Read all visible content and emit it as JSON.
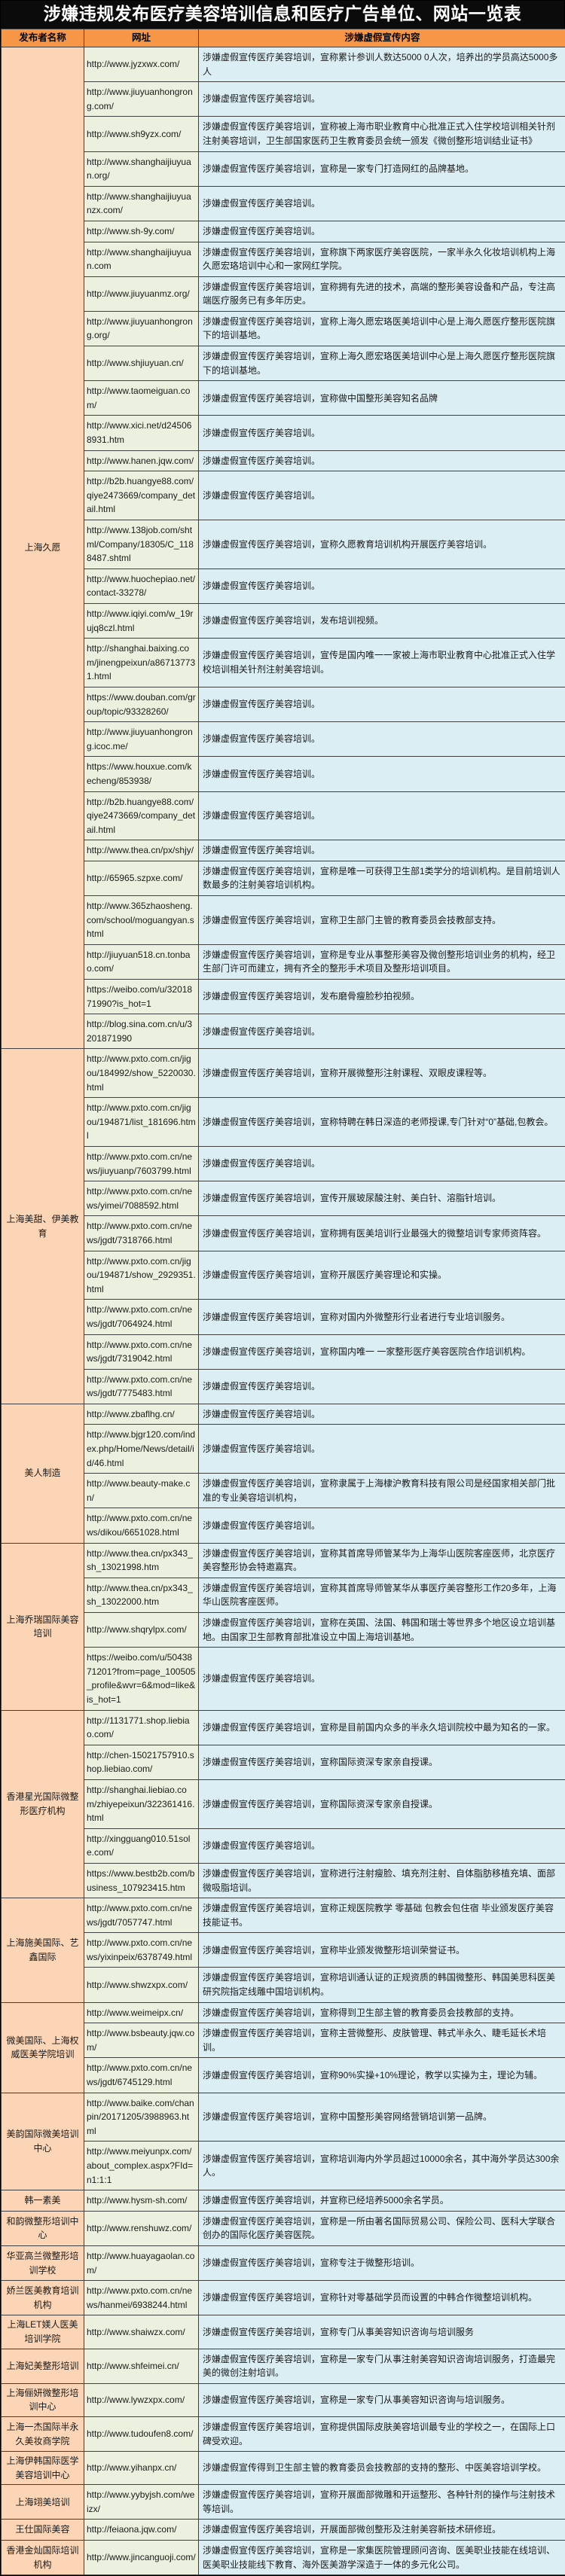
{
  "title": "涉嫌违规发布医疗美容培训信息和医疗广告单位、网站一览表",
  "columns": [
    "发布者名称",
    "网址",
    "涉嫌虚假宣传内容"
  ],
  "colors": {
    "title_bg": "#0b0b0b",
    "title_text": "#ffffff",
    "header_bg": "#f79646",
    "name_col_bg": "#fbd5b5",
    "url_col_bg": "#ebf1de",
    "content_col_bg": "#daeef3",
    "border": "#404040"
  },
  "groups": [
    {
      "publisher": "上海久愿",
      "rows": [
        {
          "url": "http://www.jyzxwx.com/",
          "content": "涉嫌虚假宣传医疗美容培训，宣称累计参训人数达5000 0人次，培养出的学员高达5000多人"
        },
        {
          "url": "http://www.jiuyuanhongrong.com/",
          "content": "涉嫌虚假宣传医疗美容培训。"
        },
        {
          "url": "http://www.sh9yzx.com/",
          "content": "涉嫌虚假宣传医疗美容培训，宣称被上海市职业教育中心批准正式入住学校培训相关针剂注射美容培训，卫生部国家医药卫生教育委员会统一颁发《微创整形培训结业证书》"
        },
        {
          "url": "http://www.shanghaijiuyuan.org/",
          "content": "涉嫌虚假宣传医疗美容培训，宣称是一家专门打造网红的品牌基地。"
        },
        {
          "url": "http://www.shanghaijiuyuanzx.com/",
          "content": "涉嫌虚假宣传医疗美容培训。"
        },
        {
          "url": "http://www.sh-9y.com/",
          "content": "涉嫌虚假宣传医疗美容培训。"
        },
        {
          "url": "http://www.shanghaijiuyuan.com",
          "content": "涉嫌虚假宣传医疗美容培训，宣称旗下两家医疗美容医院，一家半永久化妆培训机构上海久愿宏珞培训中心和一家网红学院。"
        },
        {
          "url": "http://www.jiuyuanmz.org/",
          "content": "涉嫌虚假宣传医疗美容培训，宣称拥有先进的技术，高端的整形美容设备和产品，专注高端医疗服务已有多年历史。"
        },
        {
          "url": "http://www.jiuyuanhongrong.org/",
          "content": "涉嫌虚假宣传医疗美容培训，宣称上海久愿宏珞医美培训中心是上海久愿医疗整形医院旗下的培训基地。"
        },
        {
          "url": "http://www.shjiuyuan.cn/",
          "content": "涉嫌虚假宣传医疗美容培训，宣称上海久愿宏珞医美培训中心是上海久愿医疗整形医院旗下的培训基地。"
        },
        {
          "url": "http://www.taomeiguan.com/",
          "content": "涉嫌虚假宣传医疗美容培训，宣称做中国整形美容知名品牌"
        },
        {
          "url": "http://www.xici.net/d245068931.htm",
          "content": "涉嫌虚假宣传医疗美容培训。"
        },
        {
          "url": "http://www.hanen.jqw.com/",
          "content": "涉嫌虚假宣传医疗美容培训。"
        },
        {
          "url": "http://b2b.huangye88.com/qiye2473669/company_detail.html",
          "content": "涉嫌虚假宣传医疗美容培训。"
        },
        {
          "url": "http://www.138job.com/shtml/Company/18305/C_1188487.shtml",
          "content": "涉嫌虚假宣传医疗美容培训，宣称久愿教育培训机构开展医疗美容培训。"
        },
        {
          "url": "http://www.huochepiao.net/contact-33278/",
          "content": "涉嫌虚假宣传医疗美容培训。"
        },
        {
          "url": "http://www.iqiyi.com/w_19rujq8czl.html",
          "content": "涉嫌虚假宣传医疗美容培训，发布培训视频。"
        },
        {
          "url": "http://shanghai.baixing.com/jinengpeixun/a867137731.html",
          "content": "涉嫌虚假宣传医疗美容培训，宣传是国内唯一一家被上海市职业教育中心批准正式入住学校培训相关针剂注射美容培训。"
        },
        {
          "url": "https://www.douban.com/group/topic/93328260/",
          "content": "涉嫌虚假宣传医疗美容培训。"
        },
        {
          "url": "http://www.jiuyuanhongrong.icoc.me/",
          "content": "涉嫌虚假宣传医疗美容培训。"
        },
        {
          "url": "https://www.houxue.com/kecheng/853938/",
          "content": "涉嫌虚假宣传医疗美容培训。"
        },
        {
          "url": "http://b2b.huangye88.com/qiye2473669/company_detail.html",
          "content": "涉嫌虚假宣传医疗美容培训。"
        },
        {
          "url": "http://www.thea.cn/px/shjy/",
          "content": "涉嫌虚假宣传医疗美容培训。"
        },
        {
          "url": "http://65965.szpxe.com/",
          "content": "涉嫌虚假宣传医疗美容培训，宣称是唯一可获得卫生部1类学分的培训机构。是目前培训人数最多的注射美容培训机构。"
        },
        {
          "url": "http://www.365zhaosheng.com/school/moguangyan.shtml",
          "content": "涉嫌虚假宣传医疗美容培训，宣称卫生部门主管的教育委员会技教部支持。"
        },
        {
          "url": "http://jiuyuan518.cn.tonbao.com/",
          "content": "涉嫌虚假宣传医疗美容培训，宣称是专业从事整形美容及微创整形培训业务的机构，经卫生部门许可而建立，拥有齐全的整形手术项目及整形培训项目。"
        },
        {
          "url": "https://weibo.com/u/3201871990?is_hot=1",
          "content": "涉嫌虚假宣传医疗美容培训，发布磨骨瘦脸秒拍视频。"
        },
        {
          "url": "http://blog.sina.com.cn/u/3201871990",
          "content": "涉嫌虚假宣传医疗美容培训。"
        }
      ]
    },
    {
      "publisher": "上海美甜、伊美教育",
      "rows": [
        {
          "url": "http://www.pxto.com.cn/jigou/184992/show_5220030.html",
          "content": "涉嫌虚假宣传医疗美容培训，宣称开展微整形注射课程、双眼皮课程等。"
        },
        {
          "url": "http://www.pxto.com.cn/jigou/194871/list_181696.html",
          "content": "涉嫌虚假宣传医疗美容培训，宣称特聘在韩日深造的老师授课,专门针对“0”基础,包教会。"
        },
        {
          "url": "http://www.pxto.com.cn/news/jiuyuanp/7603799.html",
          "content": "涉嫌虚假宣传医疗美容培训。"
        },
        {
          "url": "http://www.pxto.com.cn/news/yimei/7088592.html",
          "content": "涉嫌虚假宣传医疗美容培训，宣传开展玻尿酸注射、美白针、溶脂针培训。"
        },
        {
          "url": "http://www.pxto.com.cn/news/jgdt/7318766.html",
          "content": "涉嫌虚假宣传医疗美容培训，宣称拥有医美培训行业最强大的微整培训专家师资阵容。"
        },
        {
          "url": "http://www.pxto.com.cn/jigou/194871/show_2929351.html",
          "content": "涉嫌虚假宣传医疗美容培训，宣称开展医疗美容理论和实操。"
        },
        {
          "url": "http://www.pxto.com.cn/news/jgdt/7064924.html",
          "content": "涉嫌虚假宣传医疗美容培训，宣称对国内外微整形行业者进行专业培训服务。"
        },
        {
          "url": "http://www.pxto.com.cn/news/jgdt/7319042.html",
          "content": "涉嫌虚假宣传医疗美容培训，宣称国内唯一 一家整形医疗美容医院合作培训机构。"
        },
        {
          "url": "http://www.pxto.com.cn/news/jgdt/7775483.html",
          "content": "涉嫌虚假宣传医疗美容培训。"
        }
      ]
    },
    {
      "publisher": "美人制造",
      "rows": [
        {
          "url": "http://www.zbaflhg.cn/",
          "content": "涉嫌虚假宣传医疗美容培训。"
        },
        {
          "url": "http://www.bjgr120.com/index.php/Home/News/detail/id/46.html",
          "content": "涉嫌虚假宣传医疗美容培训。"
        },
        {
          "url": "http://www.beauty-make.cn/",
          "content": "涉嫌虚假宣传医疗美容培训，宣称隶属于上海棣沪教育科技有限公司是经国家相关部门批准的专业美容培训机构，"
        },
        {
          "url": "http://www.pxto.com.cn/news/dikou/6651028.html",
          "content": "涉嫌虚假宣传医疗美容培训。"
        }
      ]
    },
    {
      "publisher": "上海乔瑞国际美容培训",
      "rows": [
        {
          "url": "http://www.thea.cn/px343_sh_13021998.htm",
          "content": "涉嫌虚假宣传医疗美容培训，宣称其首席导师管某华为上海华山医院客座医师，北京医疗美容整形协会特邀嘉宾。"
        },
        {
          "url": "http://www.thea.cn/px343_sh_13022000.htm",
          "content": "涉嫌虚假宣传医疗美容培训，宣称其首席导师管某华从事医疗美容整形工作20多年，上海华山医院客座医师。"
        },
        {
          "url": "http://www.shqrylpx.com/",
          "content": "涉嫌虚假宣传医疗美容培训，宣称在英国、法国、韩国和瑞士等世界多个地区设立培训基地。由国家卫生部教育部批准设立中国上海培训基地。"
        },
        {
          "url": "https://weibo.com/u/5043871201?from=page_100505_profile&wvr=6&mod=like&is_hot=1",
          "content": "涉嫌虚假宣传医疗美容培训。"
        }
      ]
    },
    {
      "publisher": "香港星光国际微整形医疗机构",
      "rows": [
        {
          "url": "http://1131771.shop.liebiao.com/",
          "content": "涉嫌虚假宣传医疗美容培训，宣称是目前国内众多的半永久培训院校中最为知名的一家。"
        },
        {
          "url": "http://chen-15021757910.shop.liebiao.com/",
          "content": "涉嫌虚假宣传医疗美容培训，宣称国际资深专家亲自授课。"
        },
        {
          "url": "http://shanghai.liebiao.com/zhiyepeixun/322361416.html",
          "content": "涉嫌虚假宣传医疗美容培训，宣称国际资深专家亲自授课。"
        },
        {
          "url": "http://xingguang010.51sole.com/",
          "content": "涉嫌虚假宣传医疗美容培训。"
        },
        {
          "url": "https://www.bestb2b.com/business_107923415.htm",
          "content": "涉嫌虚假宣传医疗美容培训，宣称进行注射瘦脸、填充剂注射、自体脂肪移植充填、面部微吸脂培训。"
        }
      ]
    },
    {
      "publisher": "上海施美国际、艺鑫国际",
      "rows": [
        {
          "url": "http://www.pxto.com.cn/news/jgdt/7057747.html",
          "content": "涉嫌虚假宣传医疗美容培训，宣称正规医院教学 零基础 包教会包住宿 毕业颁发医疗美容技能证书。"
        },
        {
          "url": "http://www.pxto.com.cn/news/yixinpeix/6378749.html",
          "content": "涉嫌虚假宣传医疗美容培训，宣称毕业颁发微整形培训荣誉证书。"
        },
        {
          "url": "http://www.shwzxpx.com/",
          "content": "涉嫌虚假宣传医疗美容培训，宣称培训通认证的正规资质的韩国微整形、韩国美思科医美研究院指定线雕中国培训机构。"
        }
      ]
    },
    {
      "publisher": "微美国际、上海权威医美学院培训",
      "rows": [
        {
          "url": "http://www.weimeipx.cn/",
          "content": "涉嫌虚假宣传医疗美容培训，宣称得到卫生部主管的教育委员会技教部的支持。"
        },
        {
          "url": "http://www.bsbeauty.jqw.com/",
          "content": "涉嫌虚假宣传医疗美容培训，宣称主营微整形、皮肤管理、韩式半永久、睫毛延长术培训。"
        },
        {
          "url": "http://www.pxto.com.cn/news/jgdt/6745129.html",
          "content": "涉嫌虚假宣传医疗美容培训，宣称90%实操+10%理论，教学以实操为主，理论为辅。"
        }
      ]
    },
    {
      "publisher": "美韵国际微美培训中心",
      "rows": [
        {
          "url": "http://www.baike.com/chanpin/20171205/3988963.html",
          "content": "涉嫌虚假宣传医疗美容培训，宣称中国整形美容网络营销培训第一品牌。"
        },
        {
          "url": "http://www.meiyunpx.com/about_complex.aspx?FId=n1:1:1",
          "content": "涉嫌虚假宣传医疗美容培训，宣称培训海内外学员超过10000余名，其中海外学员达300余人。"
        }
      ]
    },
    {
      "publisher": "韩一素美",
      "rows": [
        {
          "url": "http://www.hysm-sh.com/",
          "content": "涉嫌虚假宣传医疗美容培训，并宣称已经培养5000余名学员。"
        }
      ]
    },
    {
      "publisher": "和韵微整形培训中心",
      "rows": [
        {
          "url": "http://www.renshuwz.com/",
          "content": "涉嫌虚假宣传医疗美容培训，宣称是一所由著名国际贸易公司、保险公司、医科大学联合创办的国际化医疗美容医院。"
        }
      ]
    },
    {
      "publisher": "华亚高兰微整形培训学校",
      "rows": [
        {
          "url": "http://www.huayagaolan.com/",
          "content": "涉嫌虚假宣传医疗美容培训，宣称专注于微整形培训。"
        }
      ]
    },
    {
      "publisher": "娇兰医美教育培训机构",
      "rows": [
        {
          "url": "http://www.pxto.com.cn/news/hanmei/6938244.html",
          "content": "涉嫌虚假宣传医疗美容培训，宣称针对零基础学员而设置的中韩合作微整培训机构。"
        }
      ]
    },
    {
      "publisher": "上海LET媄人医美培训学院",
      "rows": [
        {
          "url": "http://www.shaiwzx.com/",
          "content": "涉嫌虚假宣传医疗美容培训，宣称专门从事美容知识咨询与培训服务"
        }
      ]
    },
    {
      "publisher": "上海妃美整形培训",
      "rows": [
        {
          "url": "http://www.shfeimei.cn/",
          "content": "涉嫌虚假宣传医疗美容培训，宣称是一家专门从事注射美容知识咨询培训服务，打造最完美的微创注射培训。"
        }
      ]
    },
    {
      "publisher": "上海俪妍微整形培训中心",
      "rows": [
        {
          "url": "http://www.lywzxpx.com/",
          "content": "涉嫌虚假宣传医疗美容培训，宣称是一家专门从事美容知识咨询与培训服务。"
        }
      ]
    },
    {
      "publisher": "上海一杰国际半永久美妆商学院",
      "rows": [
        {
          "url": "http://www.tudoufen8.com/",
          "content": "涉嫌虚假宣传医疗美容培训，宣称提供国际皮肤美容培训最专业的学校之一，在国际上口碑受欢迎。"
        }
      ]
    },
    {
      "publisher": "上海伊韩国际医学美容培训中心",
      "rows": [
        {
          "url": "http://www.yihanpx.cn/",
          "content": "涉嫌虚假宣传得到卫生部主管的教育委员会技教部的支持的整形、中医美容培训学校。"
        }
      ]
    },
    {
      "publisher": "上海翊美培训",
      "rows": [
        {
          "url": "http://www.yybyjsh.com/weizx/",
          "content": "涉嫌虚假宣传医疗美容培训，宣称开展面部微雕和开运整形、各种针剂的操作与注射技术等培训。"
        }
      ]
    },
    {
      "publisher": "王仕国际美容",
      "rows": [
        {
          "url": "http://feiaona.jqw.com/",
          "content": "涉嫌虚假宣传医疗美容培训，开展面部微创整形及注射美容新技术研修班。"
        }
      ]
    },
    {
      "publisher": "香港金灿国际培训机构",
      "rows": [
        {
          "url": "http://www.jincanguoji.com/",
          "content": "涉嫌虚假宣传医疗美容培训，宣称是一家集医院管理顾问咨询、医美职业技能在线培训、医美职业技能线下教育、海外医美游学深造于一体的多元化公司。"
        }
      ]
    }
  ]
}
